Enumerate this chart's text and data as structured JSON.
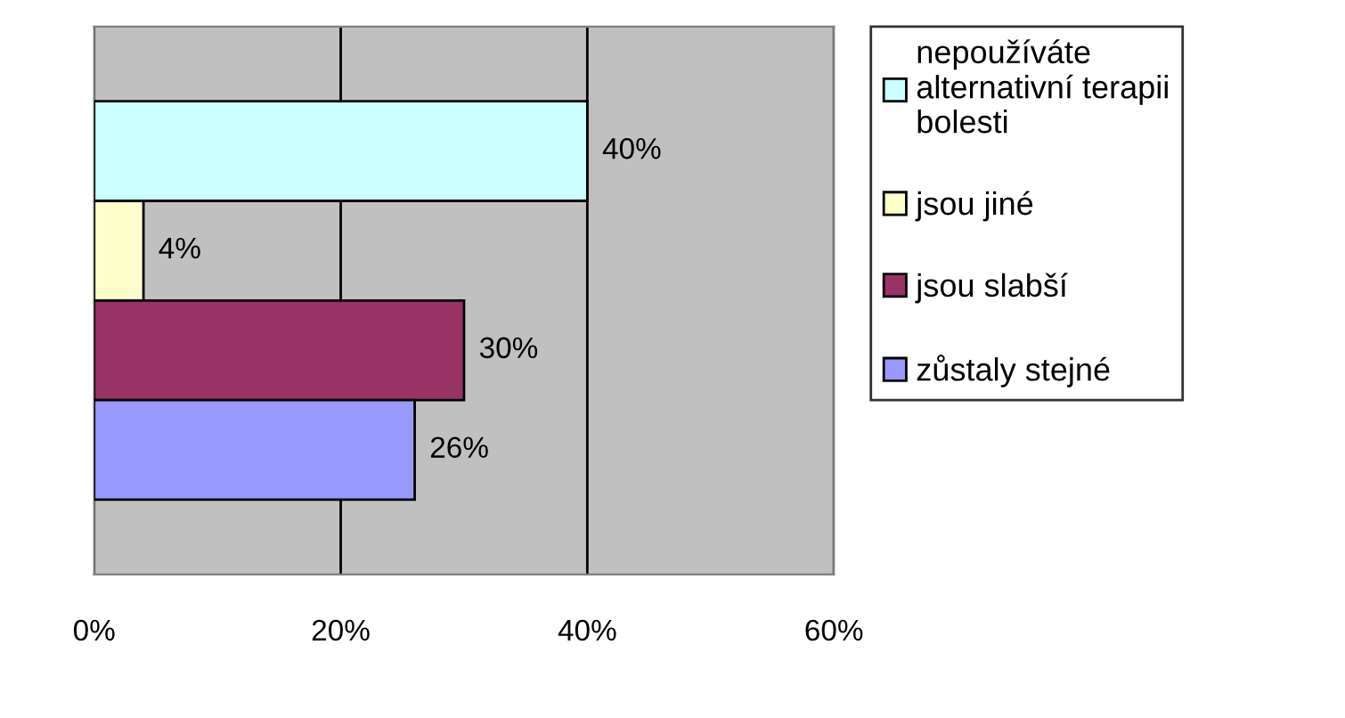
{
  "chart_data": {
    "type": "bar",
    "orientation": "horizontal",
    "categories": [
      null
    ],
    "series": [
      {
        "name": "nepoužíváte\nalternativní terapii\nbolesti",
        "color": "#ccffff",
        "values": [
          40
        ],
        "value_labels": [
          "40%"
        ]
      },
      {
        "name": "jsou jiné",
        "color": "#ffffcc",
        "values": [
          4
        ],
        "value_labels": [
          "4%"
        ]
      },
      {
        "name": "jsou slabší",
        "color": "#993366",
        "values": [
          30
        ],
        "value_labels": [
          "30%"
        ]
      },
      {
        "name": "zůstaly stejné",
        "color": "#9999ff",
        "values": [
          26
        ],
        "value_labels": [
          "26%"
        ]
      }
    ],
    "xlim": [
      0,
      60
    ],
    "xticks": [
      {
        "value": 0,
        "label": "0%"
      },
      {
        "value": 20,
        "label": "20%"
      },
      {
        "value": 40,
        "label": "40%"
      },
      {
        "value": 60,
        "label": "60%"
      }
    ],
    "grid": "x",
    "legend": "right"
  }
}
